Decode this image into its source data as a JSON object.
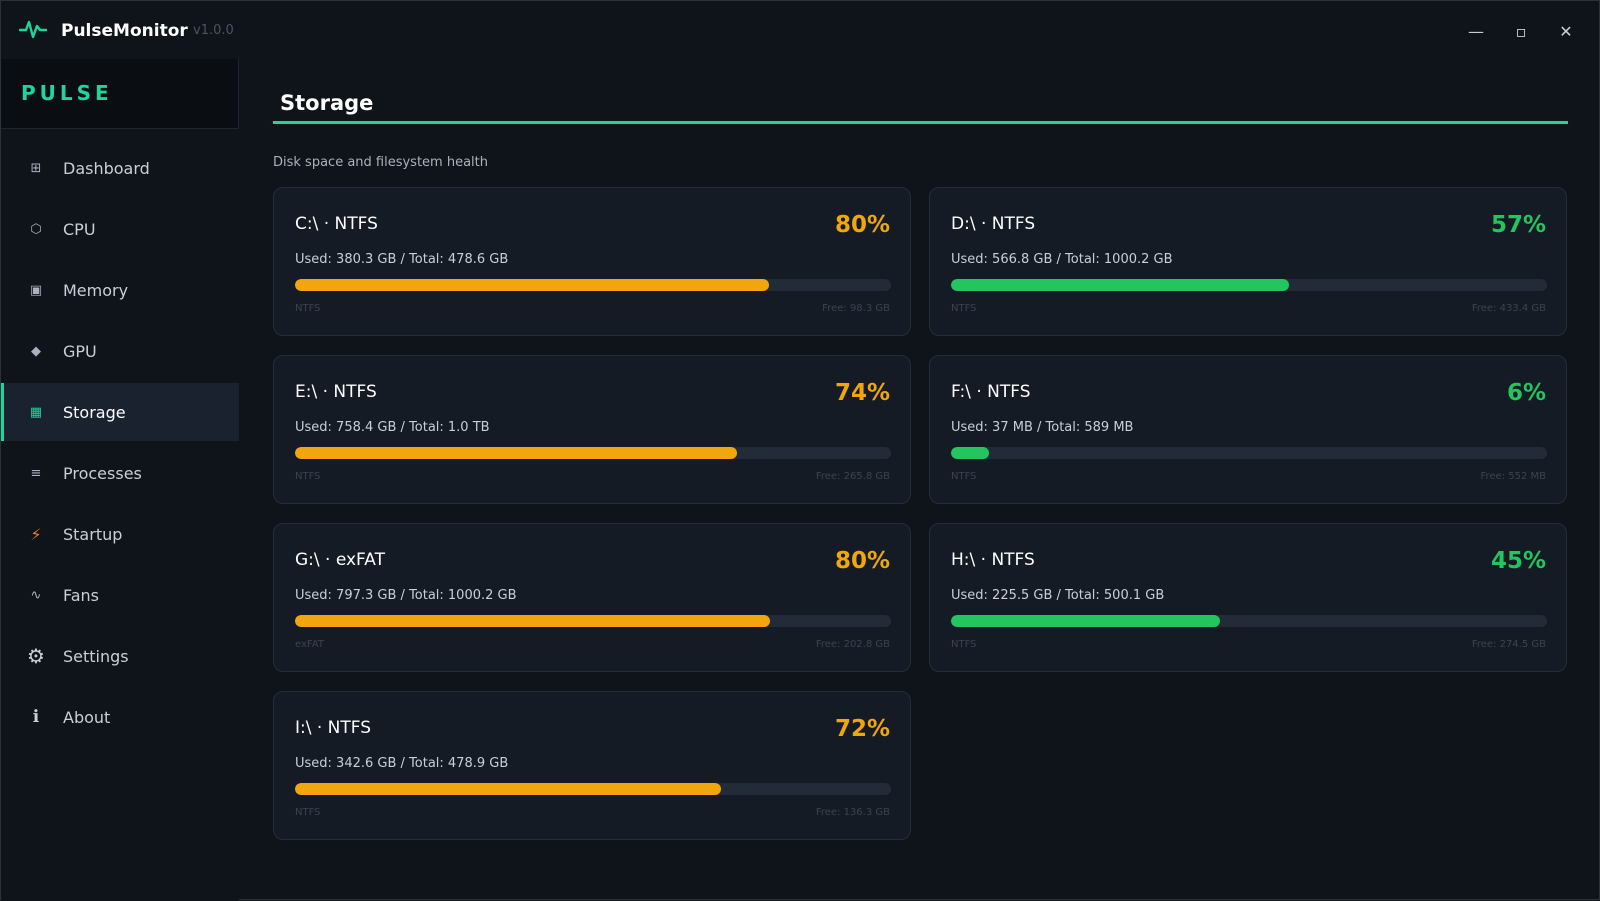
{
  "app": {
    "name": "PulseMonitor",
    "version": "v1.0.0",
    "brand": "PULSE"
  },
  "window_controls": {
    "minimize": "—",
    "maximize": "▫",
    "close": "✕"
  },
  "colors": {
    "accent": "#1fd69a",
    "warn": "#f2a60d",
    "ok": "#22c55e"
  },
  "sidebar": {
    "items": [
      {
        "label": "Dashboard",
        "icon": "grid-icon",
        "glyph": "⊞"
      },
      {
        "label": "CPU",
        "icon": "hexagon-icon",
        "glyph": "⬡"
      },
      {
        "label": "Memory",
        "icon": "memory-icon",
        "glyph": "▣"
      },
      {
        "label": "GPU",
        "icon": "diamond-icon",
        "glyph": "◆"
      },
      {
        "label": "Storage",
        "icon": "storage-icon",
        "glyph": "▦",
        "active": true
      },
      {
        "label": "Processes",
        "icon": "list-icon",
        "glyph": "≡"
      },
      {
        "label": "Startup",
        "icon": "lightning-icon",
        "glyph": "⚡"
      },
      {
        "label": "Fans",
        "icon": "fan-icon",
        "glyph": "∿"
      },
      {
        "label": "Settings",
        "icon": "gear-icon",
        "glyph": "⚙"
      },
      {
        "label": "About",
        "icon": "info-icon",
        "glyph": "ℹ"
      }
    ]
  },
  "main": {
    "title": "Storage",
    "subtitle": "Disk space and filesystem health",
    "drives": [
      {
        "title": "C:\\  ·  NTFS",
        "percent": "80%",
        "fraction": 0.795,
        "usage": "Used: 380.3 GB  /  Total: 478.6 GB",
        "fs": "NTFS",
        "free": "Free: 98.3 GB",
        "level": "warn"
      },
      {
        "title": "D:\\  ·  NTFS",
        "percent": "57%",
        "fraction": 0.567,
        "usage": "Used: 566.8 GB  /  Total: 1000.2 GB",
        "fs": "NTFS",
        "free": "Free: 433.4 GB",
        "level": "ok"
      },
      {
        "title": "E:\\  ·  NTFS",
        "percent": "74%",
        "fraction": 0.741,
        "usage": "Used: 758.4 GB  /  Total: 1.0 TB",
        "fs": "NTFS",
        "free": "Free: 265.8 GB",
        "level": "warn"
      },
      {
        "title": "F:\\  ·  NTFS",
        "percent": "6%",
        "fraction": 0.063,
        "usage": "Used: 37 MB  /  Total: 589 MB",
        "fs": "NTFS",
        "free": "Free: 552 MB",
        "level": "ok"
      },
      {
        "title": "G:\\  ·  exFAT",
        "percent": "80%",
        "fraction": 0.797,
        "usage": "Used: 797.3 GB  /  Total: 1000.2 GB",
        "fs": "exFAT",
        "free": "Free: 202.8 GB",
        "level": "warn"
      },
      {
        "title": "H:\\  ·  NTFS",
        "percent": "45%",
        "fraction": 0.451,
        "usage": "Used: 225.5 GB  /  Total: 500.1 GB",
        "fs": "NTFS",
        "free": "Free: 274.5 GB",
        "level": "ok"
      },
      {
        "title": "I:\\  ·  NTFS",
        "percent": "72%",
        "fraction": 0.715,
        "usage": "Used: 342.6 GB  /  Total: 478.9 GB",
        "fs": "NTFS",
        "free": "Free: 136.3 GB",
        "level": "warn"
      }
    ]
  }
}
